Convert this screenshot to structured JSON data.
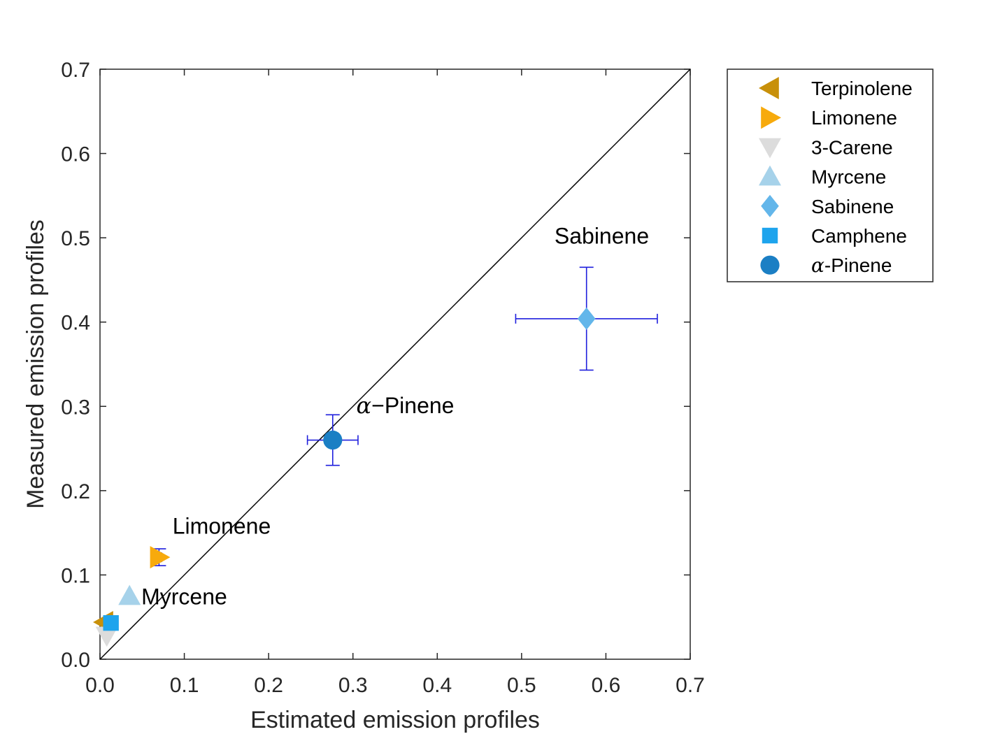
{
  "chart_data": {
    "type": "scatter",
    "title": "",
    "xlabel": "Estimated emission profiles",
    "ylabel": "Measured emission profiles",
    "xlim": [
      0,
      0.7
    ],
    "ylim": [
      0,
      0.7
    ],
    "xticks": [
      "0.0",
      "0.1",
      "0.2",
      "0.3",
      "0.4",
      "0.5",
      "0.6",
      "0.7"
    ],
    "yticks": [
      "0.0",
      "0.1",
      "0.2",
      "0.3",
      "0.4",
      "0.5",
      "0.6",
      "0.7"
    ],
    "identity_line": true,
    "grid": false,
    "legend_placement": "outside-top-right",
    "error_bar_color": "#1f1fdd",
    "series": [
      {
        "name": "Terpinolene",
        "greek": "",
        "marker": "triangle-left",
        "color": "#c8900a",
        "x": 0.005,
        "y": 0.044,
        "xerr": 0,
        "yerr": 0
      },
      {
        "name": "Limonene",
        "greek": "",
        "marker": "triangle-right",
        "color": "#f7aa0c",
        "x": 0.07,
        "y": 0.121,
        "xerr": 0.003,
        "yerr": 0.01
      },
      {
        "name": "3-Carene",
        "greek": "",
        "marker": "triangle-down",
        "color": "#dcdcdc",
        "x": 0.008,
        "y": 0.028,
        "xerr": 0,
        "yerr": 0
      },
      {
        "name": "Myrcene",
        "greek": "",
        "marker": "triangle-up",
        "color": "#a6d2ea",
        "x": 0.035,
        "y": 0.075,
        "xerr": 0,
        "yerr": 0
      },
      {
        "name": "Sabinene",
        "greek": "",
        "marker": "diamond",
        "color": "#63b6ea",
        "x": 0.577,
        "y": 0.404,
        "xerr": 0.084,
        "yerr": 0.061
      },
      {
        "name": "Camphene",
        "greek": "",
        "marker": "square",
        "color": "#1ea4ed",
        "x": 0.013,
        "y": 0.043,
        "xerr": 0,
        "yerr": 0
      },
      {
        "name": "-Pinene",
        "greek": "α",
        "marker": "circle",
        "color": "#1b7fc4",
        "x": 0.276,
        "y": 0.26,
        "xerr": 0.03,
        "yerr": 0.03
      }
    ],
    "annotations": [
      {
        "text": "Sabinene",
        "greek": "",
        "x": 0.539,
        "y": 0.493
      },
      {
        "text": "−Pinene",
        "greek": "α",
        "x": 0.304,
        "y": 0.292
      },
      {
        "text": "Limonene",
        "greek": "",
        "x": 0.086,
        "y": 0.149
      },
      {
        "text": "Myrcene",
        "greek": "",
        "x": 0.049,
        "y": 0.065
      }
    ]
  }
}
